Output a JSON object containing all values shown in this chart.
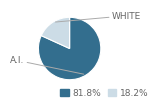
{
  "slices": [
    81.8,
    18.2
  ],
  "labels": [
    "A.I.",
    "WHITE"
  ],
  "colors": [
    "#336e8e",
    "#ccdce6"
  ],
  "legend_labels": [
    "81.8%",
    "18.2%"
  ],
  "background_color": "#ffffff",
  "startangle": 90,
  "label_fontsize": 6.5,
  "legend_fontsize": 6.5,
  "label_color": "#666666",
  "line_color": "#aaaaaa"
}
